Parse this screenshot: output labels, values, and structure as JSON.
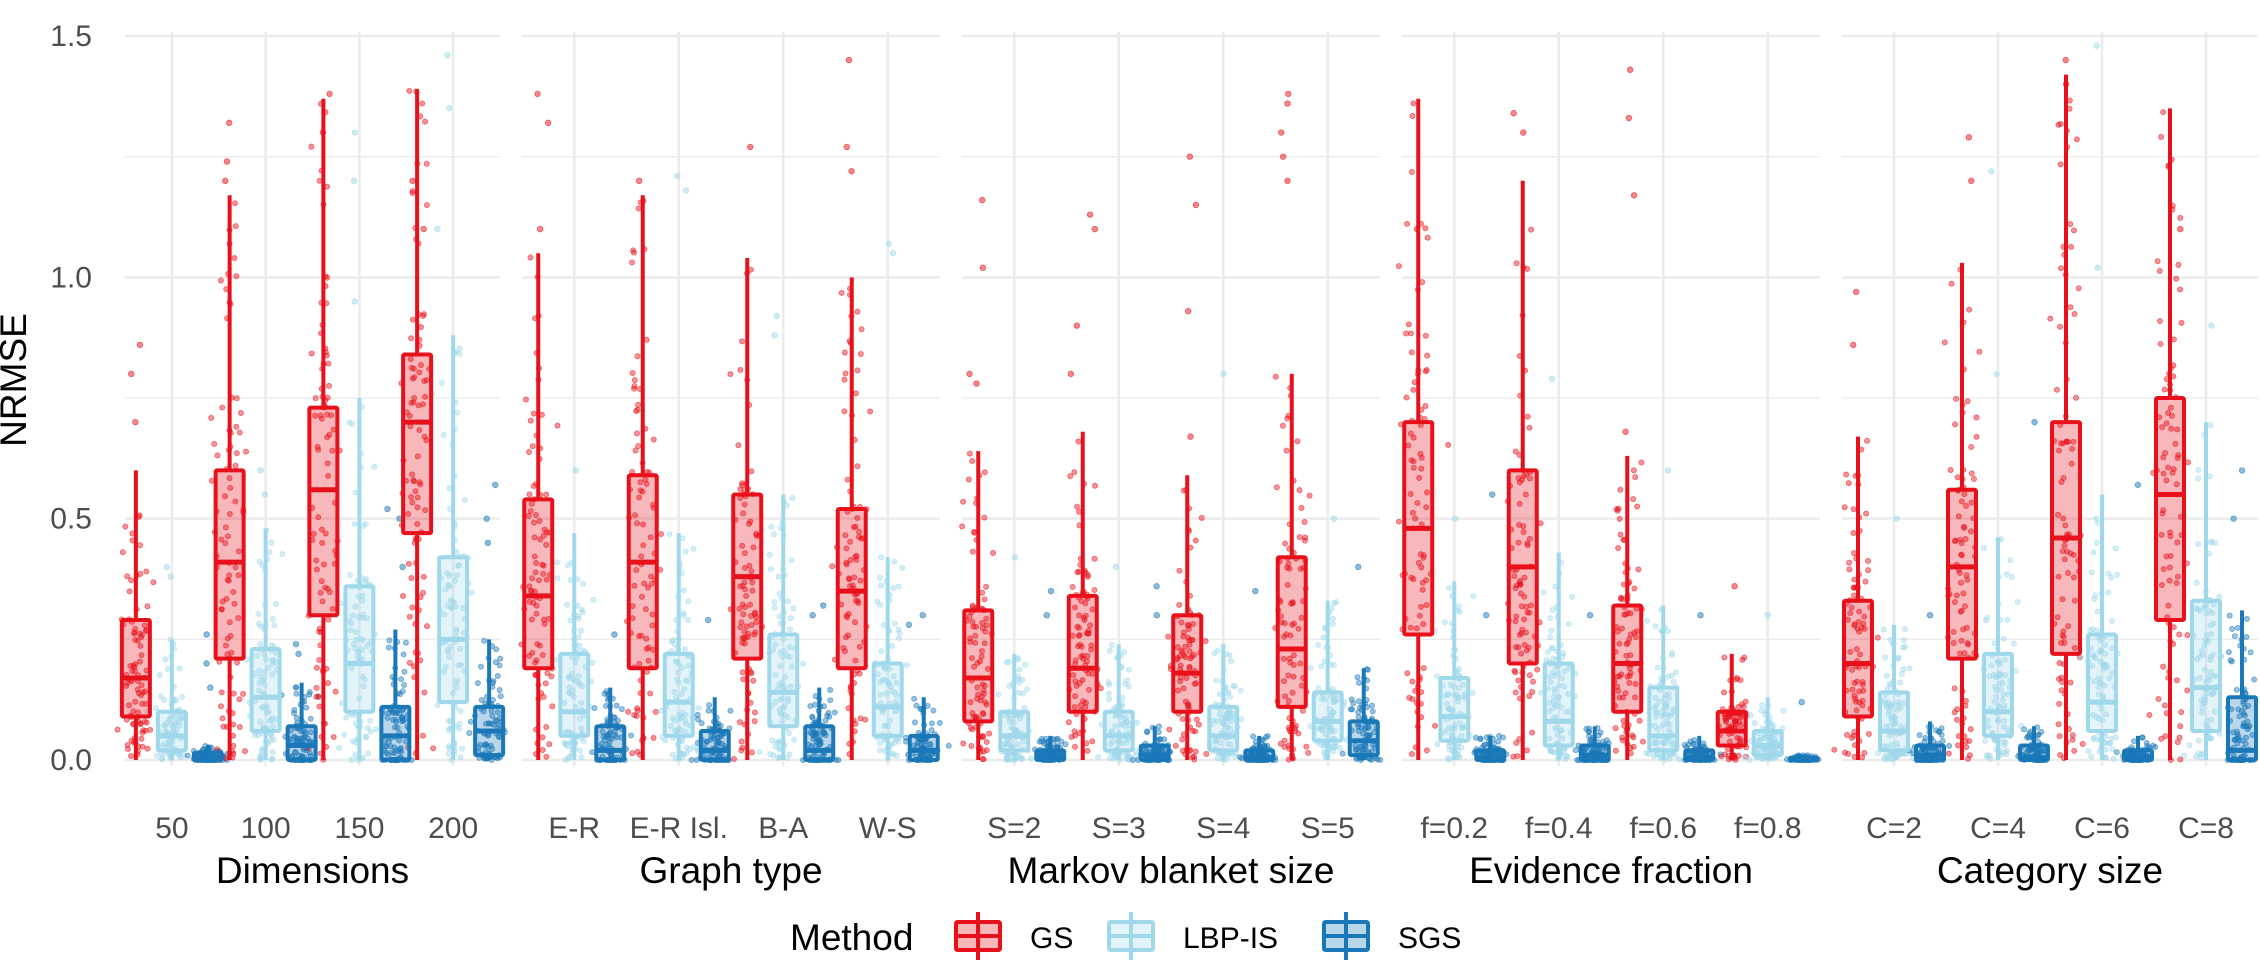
{
  "chart_data": {
    "type": "box",
    "ylabel": "NRMSE",
    "ylim": [
      0,
      1.5
    ],
    "yticks": [
      0.0,
      0.5,
      1.0,
      1.5
    ],
    "ytick_labels": [
      "0.0",
      "0.5",
      "1.0",
      "1.5"
    ],
    "grid": true,
    "legend": {
      "title": "Method",
      "position": "bottom",
      "entries": [
        "GS",
        "LBP-IS",
        "SGS"
      ]
    },
    "colors": {
      "GS": "#e8101a",
      "LBP-IS": "#9fd8ea",
      "SGS": "#1a78b8"
    },
    "methods": [
      "GS",
      "LBP-IS",
      "SGS"
    ],
    "facets": [
      {
        "label": "Dimensions",
        "categories": [
          "50",
          "100",
          "150",
          "200"
        ],
        "groups": [
          {
            "GS": {
              "whislo": 0.0,
              "q1": 0.09,
              "median": 0.17,
              "q3": 0.29,
              "whishi": 0.6,
              "outliers": [
                0.8,
                0.86,
                0.7
              ]
            },
            "LBP-IS": {
              "whislo": 0.0,
              "q1": 0.02,
              "median": 0.05,
              "q3": 0.1,
              "whishi": 0.25,
              "outliers": [
                0.4,
                0.38
              ]
            },
            "SGS": {
              "whislo": 0.0,
              "q1": 0.0,
              "median": 0.005,
              "q3": 0.015,
              "whishi": 0.03,
              "outliers": [
                0.26,
                0.2,
                0.15
              ]
            }
          },
          {
            "GS": {
              "whislo": 0.0,
              "q1": 0.21,
              "median": 0.41,
              "q3": 0.6,
              "whishi": 1.17,
              "outliers": [
                1.32,
                1.24,
                1.2
              ]
            },
            "LBP-IS": {
              "whislo": 0.0,
              "q1": 0.06,
              "median": 0.13,
              "q3": 0.23,
              "whishi": 0.48,
              "outliers": [
                0.6,
                0.55
              ]
            },
            "SGS": {
              "whislo": 0.0,
              "q1": 0.0,
              "median": 0.03,
              "q3": 0.07,
              "whishi": 0.16,
              "outliers": [
                0.24,
                0.22
              ]
            }
          },
          {
            "GS": {
              "whislo": 0.0,
              "q1": 0.3,
              "median": 0.56,
              "q3": 0.73,
              "whishi": 1.37,
              "outliers": [
                1.38,
                1.3
              ]
            },
            "LBP-IS": {
              "whislo": 0.0,
              "q1": 0.1,
              "median": 0.2,
              "q3": 0.36,
              "whishi": 0.75,
              "outliers": [
                0.95,
                1.2,
                1.3
              ]
            },
            "SGS": {
              "whislo": 0.0,
              "q1": 0.0,
              "median": 0.05,
              "q3": 0.11,
              "whishi": 0.27,
              "outliers": [
                0.5,
                0.52,
                0.4
              ]
            }
          },
          {
            "GS": {
              "whislo": 0.0,
              "q1": 0.47,
              "median": 0.7,
              "q3": 0.84,
              "whishi": 1.39,
              "outliers": [
                1.2,
                1.1
              ]
            },
            "LBP-IS": {
              "whislo": 0.0,
              "q1": 0.12,
              "median": 0.25,
              "q3": 0.42,
              "whishi": 0.88,
              "outliers": [
                1.1,
                1.35,
                1.46
              ]
            },
            "SGS": {
              "whislo": 0.0,
              "q1": 0.01,
              "median": 0.06,
              "q3": 0.11,
              "whishi": 0.25,
              "outliers": [
                0.57,
                0.5,
                0.45
              ]
            }
          }
        ]
      },
      {
        "label": "Graph type",
        "categories": [
          "E-R",
          "E-R Isl.",
          "B-A",
          "W-S"
        ],
        "groups": [
          {
            "GS": {
              "whislo": 0.0,
              "q1": 0.19,
              "median": 0.34,
              "q3": 0.54,
              "whishi": 1.05,
              "outliers": [
                1.38,
                1.32,
                1.1
              ]
            },
            "LBP-IS": {
              "whislo": 0.0,
              "q1": 0.05,
              "median": 0.1,
              "q3": 0.22,
              "whishi": 0.47,
              "outliers": [
                0.6
              ]
            },
            "SGS": {
              "whislo": 0.0,
              "q1": 0.0,
              "median": 0.02,
              "q3": 0.07,
              "whishi": 0.15,
              "outliers": [
                0.26
              ]
            }
          },
          {
            "GS": {
              "whislo": 0.0,
              "q1": 0.19,
              "median": 0.41,
              "q3": 0.59,
              "whishi": 1.17,
              "outliers": [
                1.2
              ]
            },
            "LBP-IS": {
              "whislo": 0.0,
              "q1": 0.05,
              "median": 0.12,
              "q3": 0.22,
              "whishi": 0.47,
              "outliers": [
                1.21,
                1.18
              ]
            },
            "SGS": {
              "whislo": 0.0,
              "q1": 0.0,
              "median": 0.02,
              "q3": 0.06,
              "whishi": 0.13,
              "outliers": [
                0.29
              ]
            }
          },
          {
            "GS": {
              "whislo": 0.0,
              "q1": 0.21,
              "median": 0.38,
              "q3": 0.55,
              "whishi": 1.04,
              "outliers": [
                1.27
              ]
            },
            "LBP-IS": {
              "whislo": 0.0,
              "q1": 0.07,
              "median": 0.14,
              "q3": 0.26,
              "whishi": 0.55,
              "outliers": [
                0.92,
                0.88
              ]
            },
            "SGS": {
              "whislo": 0.0,
              "q1": 0.0,
              "median": 0.02,
              "q3": 0.07,
              "whishi": 0.15,
              "outliers": [
                0.32,
                0.3
              ]
            }
          },
          {
            "GS": {
              "whislo": 0.0,
              "q1": 0.19,
              "median": 0.35,
              "q3": 0.52,
              "whishi": 1.0,
              "outliers": [
                1.45,
                1.27,
                1.22
              ]
            },
            "LBP-IS": {
              "whislo": 0.0,
              "q1": 0.05,
              "median": 0.11,
              "q3": 0.2,
              "whishi": 0.42,
              "outliers": [
                1.07,
                1.05
              ]
            },
            "SGS": {
              "whislo": 0.0,
              "q1": 0.0,
              "median": 0.02,
              "q3": 0.05,
              "whishi": 0.13,
              "outliers": [
                0.3,
                0.28
              ]
            }
          }
        ]
      },
      {
        "label": "Markov blanket size",
        "categories": [
          "S=2",
          "S=3",
          "S=4",
          "S=5"
        ],
        "groups": [
          {
            "GS": {
              "whislo": 0.0,
              "q1": 0.08,
              "median": 0.17,
              "q3": 0.31,
              "whishi": 0.64,
              "outliers": [
                1.16,
                1.02,
                0.8,
                0.78
              ]
            },
            "LBP-IS": {
              "whislo": 0.0,
              "q1": 0.02,
              "median": 0.05,
              "q3": 0.1,
              "whishi": 0.22,
              "outliers": [
                0.42
              ]
            },
            "SGS": {
              "whislo": 0.0,
              "q1": 0.0,
              "median": 0.005,
              "q3": 0.02,
              "whishi": 0.05,
              "outliers": [
                0.35,
                0.3
              ]
            }
          },
          {
            "GS": {
              "whislo": 0.0,
              "q1": 0.1,
              "median": 0.19,
              "q3": 0.34,
              "whishi": 0.68,
              "outliers": [
                1.13,
                1.1,
                0.9,
                0.8
              ]
            },
            "LBP-IS": {
              "whislo": 0.0,
              "q1": 0.02,
              "median": 0.05,
              "q3": 0.1,
              "whishi": 0.24,
              "outliers": [
                0.4
              ]
            },
            "SGS": {
              "whislo": 0.0,
              "q1": 0.0,
              "median": 0.01,
              "q3": 0.03,
              "whishi": 0.07,
              "outliers": [
                0.36,
                0.3
              ]
            }
          },
          {
            "GS": {
              "whislo": 0.0,
              "q1": 0.1,
              "median": 0.18,
              "q3": 0.3,
              "whishi": 0.59,
              "outliers": [
                1.25,
                1.15,
                0.93,
                0.67
              ]
            },
            "LBP-IS": {
              "whislo": 0.0,
              "q1": 0.02,
              "median": 0.05,
              "q3": 0.11,
              "whishi": 0.24,
              "outliers": [
                0.8
              ]
            },
            "SGS": {
              "whislo": 0.0,
              "q1": 0.0,
              "median": 0.005,
              "q3": 0.02,
              "whishi": 0.05,
              "outliers": [
                0.35
              ]
            }
          },
          {
            "GS": {
              "whislo": 0.0,
              "q1": 0.11,
              "median": 0.23,
              "q3": 0.42,
              "whishi": 0.8,
              "outliers": [
                1.38,
                1.36,
                1.3,
                1.25,
                1.2
              ]
            },
            "LBP-IS": {
              "whislo": 0.0,
              "q1": 0.04,
              "median": 0.08,
              "q3": 0.14,
              "whishi": 0.33,
              "outliers": [
                0.5
              ]
            },
            "SGS": {
              "whislo": 0.0,
              "q1": 0.01,
              "median": 0.04,
              "q3": 0.08,
              "whishi": 0.19,
              "outliers": [
                0.4
              ]
            }
          }
        ]
      },
      {
        "label": "Evidence fraction",
        "categories": [
          "f=0.2",
          "f=0.4",
          "f=0.6",
          "f=0.8"
        ],
        "groups": [
          {
            "GS": {
              "whislo": 0.0,
              "q1": 0.26,
              "median": 0.48,
              "q3": 0.7,
              "whishi": 1.37,
              "outliers": [
                1.1
              ]
            },
            "LBP-IS": {
              "whislo": 0.0,
              "q1": 0.04,
              "median": 0.09,
              "q3": 0.17,
              "whishi": 0.37,
              "outliers": [
                0.5
              ]
            },
            "SGS": {
              "whislo": 0.0,
              "q1": 0.0,
              "median": 0.005,
              "q3": 0.02,
              "whishi": 0.05,
              "outliers": [
                0.55,
                0.3
              ]
            }
          },
          {
            "GS": {
              "whislo": 0.0,
              "q1": 0.2,
              "median": 0.4,
              "q3": 0.6,
              "whishi": 1.2,
              "outliers": [
                1.34,
                1.3
              ]
            },
            "LBP-IS": {
              "whislo": 0.0,
              "q1": 0.03,
              "median": 0.08,
              "q3": 0.2,
              "whishi": 0.43,
              "outliers": [
                0.79
              ]
            },
            "SGS": {
              "whislo": 0.0,
              "q1": 0.0,
              "median": 0.01,
              "q3": 0.03,
              "whishi": 0.07,
              "outliers": [
                0.3
              ]
            }
          },
          {
            "GS": {
              "whislo": 0.0,
              "q1": 0.1,
              "median": 0.2,
              "q3": 0.32,
              "whishi": 0.63,
              "outliers": [
                1.43,
                1.33,
                1.17,
                0.68
              ]
            },
            "LBP-IS": {
              "whislo": 0.0,
              "q1": 0.02,
              "median": 0.05,
              "q3": 0.15,
              "whishi": 0.32,
              "outliers": [
                0.6
              ]
            },
            "SGS": {
              "whislo": 0.0,
              "q1": 0.0,
              "median": 0.005,
              "q3": 0.02,
              "whishi": 0.05,
              "outliers": [
                0.3
              ]
            }
          },
          {
            "GS": {
              "whislo": 0.0,
              "q1": 0.03,
              "median": 0.06,
              "q3": 0.1,
              "whishi": 0.22,
              "outliers": [
                0.36
              ]
            },
            "LBP-IS": {
              "whislo": 0.0,
              "q1": 0.01,
              "median": 0.03,
              "q3": 0.06,
              "whishi": 0.13,
              "outliers": [
                0.3
              ]
            },
            "SGS": {
              "whislo": 0.0,
              "q1": 0.0,
              "median": 0.0,
              "q3": 0.005,
              "whishi": 0.01,
              "outliers": [
                0.12
              ]
            }
          }
        ]
      },
      {
        "label": "Category size",
        "categories": [
          "C=2",
          "C=4",
          "C=6",
          "C=8"
        ],
        "groups": [
          {
            "GS": {
              "whislo": 0.0,
              "q1": 0.09,
              "median": 0.2,
              "q3": 0.33,
              "whishi": 0.67,
              "outliers": [
                0.97,
                0.86
              ]
            },
            "LBP-IS": {
              "whislo": 0.0,
              "q1": 0.02,
              "median": 0.06,
              "q3": 0.14,
              "whishi": 0.28,
              "outliers": [
                0.5
              ]
            },
            "SGS": {
              "whislo": 0.0,
              "q1": 0.0,
              "median": 0.01,
              "q3": 0.03,
              "whishi": 0.08,
              "outliers": [
                0.3
              ]
            }
          },
          {
            "GS": {
              "whislo": 0.0,
              "q1": 0.21,
              "median": 0.4,
              "q3": 0.56,
              "whishi": 1.03,
              "outliers": [
                1.29,
                1.2
              ]
            },
            "LBP-IS": {
              "whislo": 0.0,
              "q1": 0.05,
              "median": 0.1,
              "q3": 0.22,
              "whishi": 0.46,
              "outliers": [
                1.22,
                0.8
              ]
            },
            "SGS": {
              "whislo": 0.0,
              "q1": 0.0,
              "median": 0.005,
              "q3": 0.03,
              "whishi": 0.07,
              "outliers": [
                0.7
              ]
            }
          },
          {
            "GS": {
              "whislo": 0.0,
              "q1": 0.22,
              "median": 0.46,
              "q3": 0.7,
              "whishi": 1.42,
              "outliers": [
                1.45,
                1.4
              ]
            },
            "LBP-IS": {
              "whislo": 0.0,
              "q1": 0.06,
              "median": 0.12,
              "q3": 0.26,
              "whishi": 0.55,
              "outliers": [
                1.48,
                1.02
              ]
            },
            "SGS": {
              "whislo": 0.0,
              "q1": 0.0,
              "median": 0.005,
              "q3": 0.02,
              "whishi": 0.05,
              "outliers": [
                0.57
              ]
            }
          },
          {
            "GS": {
              "whislo": 0.0,
              "q1": 0.29,
              "median": 0.55,
              "q3": 0.75,
              "whishi": 1.35,
              "outliers": [
                1.1
              ]
            },
            "LBP-IS": {
              "whislo": 0.0,
              "q1": 0.06,
              "median": 0.15,
              "q3": 0.33,
              "whishi": 0.7,
              "outliers": [
                0.9
              ]
            },
            "SGS": {
              "whislo": 0.0,
              "q1": 0.0,
              "median": 0.02,
              "q3": 0.13,
              "whishi": 0.31,
              "outliers": [
                0.6,
                0.5
              ]
            }
          }
        ]
      }
    ]
  }
}
